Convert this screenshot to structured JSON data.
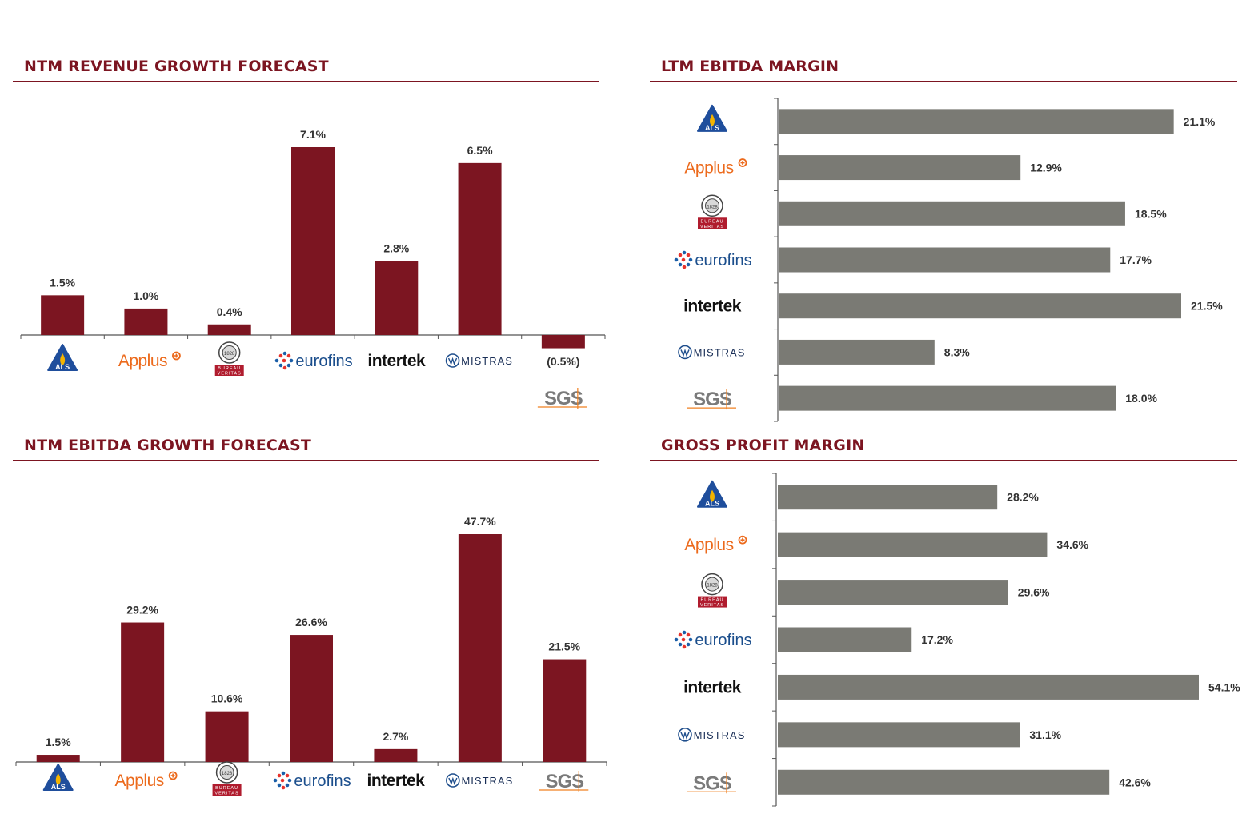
{
  "colors": {
    "title": "#7c1521",
    "bar_red": "#7c1521",
    "bar_gray": "#7a7a74",
    "axis": "#555555"
  },
  "logos": {
    "als": {
      "text": "ALS"
    },
    "applus": {
      "text": "Applus"
    },
    "bureau_veritas": {
      "line1": "BUREAU",
      "line2": "VERITAS",
      "year": "1828"
    },
    "eurofins": {
      "text": "eurofins"
    },
    "intertek": {
      "text": "intertek"
    },
    "mistras": {
      "text": "MISTRAS"
    },
    "sgs": {
      "text": "SGS"
    }
  },
  "chart_data": [
    {
      "id": "revenue",
      "type": "bar",
      "title": "NTM REVENUE GROWTH FORECAST",
      "categories": [
        "ALS",
        "Applus",
        "Bureau Veritas",
        "eurofins",
        "intertek",
        "MISTRAS",
        "SGS"
      ],
      "values": [
        1.5,
        1.0,
        0.4,
        7.1,
        2.8,
        6.5,
        -0.5
      ],
      "labels": [
        "1.5%",
        "1.0%",
        "0.4%",
        "7.1%",
        "2.8%",
        "6.5%",
        "(0.5%)"
      ],
      "ylim": [
        -0.7,
        7.1
      ]
    },
    {
      "id": "ebitda_margin",
      "type": "bar",
      "orientation": "horizontal",
      "title": "LTM EBITDA MARGIN",
      "categories": [
        "ALS",
        "Applus",
        "Bureau Veritas",
        "eurofins",
        "intertek",
        "MISTRAS",
        "SGS"
      ],
      "values": [
        21.1,
        12.9,
        18.5,
        17.7,
        21.5,
        8.3,
        18.0
      ],
      "labels": [
        "21.1%",
        "12.9%",
        "18.5%",
        "17.7%",
        "21.5%",
        "8.3%",
        "18.0%"
      ],
      "xlim": [
        0,
        21.5
      ]
    },
    {
      "id": "ebitda_growth",
      "type": "bar",
      "title": "NTM EBITDA GROWTH FORECAST",
      "categories": [
        "ALS",
        "Applus",
        "Bureau Veritas",
        "eurofins",
        "intertek",
        "MISTRAS",
        "SGS"
      ],
      "values": [
        1.5,
        29.2,
        10.6,
        26.6,
        2.7,
        47.7,
        21.5
      ],
      "labels": [
        "1.5%",
        "29.2%",
        "10.6%",
        "26.6%",
        "2.7%",
        "47.7%",
        "21.5%"
      ],
      "ylim": [
        0,
        47.7
      ]
    },
    {
      "id": "gross_margin",
      "type": "bar",
      "orientation": "horizontal",
      "title": "GROSS PROFIT MARGIN",
      "categories": [
        "ALS",
        "Applus",
        "Bureau Veritas",
        "eurofins",
        "intertek",
        "MISTRAS",
        "SGS"
      ],
      "values": [
        28.2,
        34.6,
        29.6,
        17.2,
        54.1,
        31.1,
        42.6
      ],
      "labels": [
        "28.2%",
        "34.6%",
        "29.6%",
        "17.2%",
        "54.1%",
        "31.1%",
        "42.6%"
      ],
      "xlim": [
        0,
        54.1
      ]
    }
  ]
}
